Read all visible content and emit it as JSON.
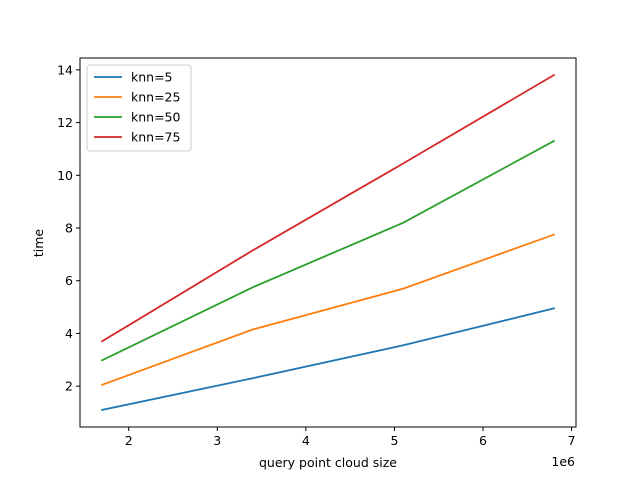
{
  "chart_data": {
    "type": "line",
    "title": "",
    "xlabel": "query point cloud size",
    "ylabel": "time",
    "x_offset_label": "1e6",
    "xlim": [
      1.45,
      7.05
    ],
    "ylim": [
      0.45,
      14.45
    ],
    "x_ticks": [
      2,
      3,
      4,
      5,
      6,
      7
    ],
    "y_ticks": [
      2,
      4,
      6,
      8,
      10,
      12,
      14
    ],
    "x": [
      1.7,
      3.4,
      5.1,
      6.8
    ],
    "series": [
      {
        "name": "knn=5",
        "color": "#1f77b4",
        "values": [
          1.1,
          2.3,
          3.55,
          4.95
        ]
      },
      {
        "name": "knn=25",
        "color": "#ff7f0e",
        "values": [
          2.05,
          4.15,
          5.7,
          7.75
        ]
      },
      {
        "name": "knn=50",
        "color": "#2ca02c",
        "values": [
          2.98,
          5.75,
          8.2,
          11.3
        ]
      },
      {
        "name": "knn=75",
        "color": "#d62728",
        "values": [
          3.7,
          7.15,
          10.45,
          13.8
        ]
      }
    ],
    "grid": false,
    "legend_position": "top-left"
  }
}
